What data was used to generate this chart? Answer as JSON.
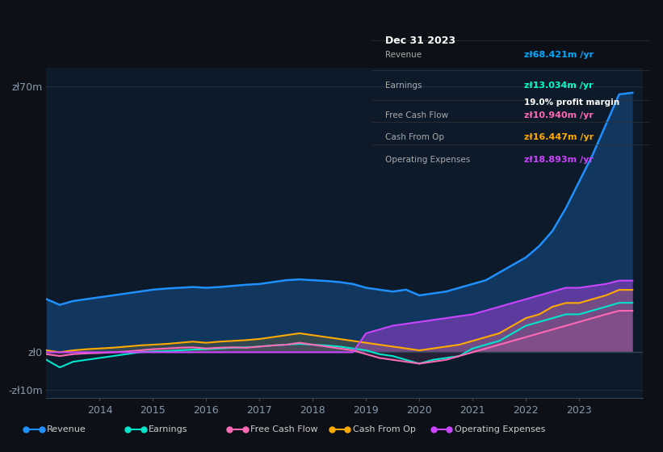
{
  "bg_color": "#0d1117",
  "plot_bg_color": "#0d1a2a",
  "grid_color": "#1e2d3d",
  "title": "Dec 31 2023",
  "tooltip": {
    "Revenue": {
      "value": "zł68.421m",
      "color": "#00aaff"
    },
    "Earnings": {
      "value": "zł13.034m",
      "color": "#00ffcc"
    },
    "profit_margin": "19.0%",
    "Free Cash Flow": {
      "value": "zł10.940m",
      "color": "#ff69b4"
    },
    "Cash From Op": {
      "value": "zł16.447m",
      "color": "#ffaa00"
    },
    "Operating Expenses": {
      "value": "zł18.893m",
      "color": "#cc44ff"
    }
  },
  "years": [
    2013.0,
    2013.25,
    2013.5,
    2013.75,
    2014.0,
    2014.25,
    2014.5,
    2014.75,
    2015.0,
    2015.25,
    2015.5,
    2015.75,
    2016.0,
    2016.25,
    2016.5,
    2016.75,
    2017.0,
    2017.25,
    2017.5,
    2017.75,
    2018.0,
    2018.25,
    2018.5,
    2018.75,
    2019.0,
    2019.25,
    2019.5,
    2019.75,
    2020.0,
    2020.25,
    2020.5,
    2020.75,
    2021.0,
    2021.25,
    2021.5,
    2021.75,
    2022.0,
    2022.25,
    2022.5,
    2022.75,
    2023.0,
    2023.25,
    2023.5,
    2023.75,
    2024.0
  ],
  "revenue": [
    14,
    12.5,
    13.5,
    14,
    14.5,
    15,
    15.5,
    16,
    16.5,
    16.8,
    17,
    17.2,
    17,
    17.2,
    17.5,
    17.8,
    18,
    18.5,
    19,
    19.2,
    19,
    18.8,
    18.5,
    18,
    17,
    16.5,
    16,
    16.5,
    15,
    15.5,
    16,
    17,
    18,
    19,
    21,
    23,
    25,
    28,
    32,
    38,
    45,
    52,
    60,
    68,
    68.421
  ],
  "earnings": [
    -2,
    -4,
    -2.5,
    -2,
    -1.5,
    -1,
    -0.5,
    0,
    0.2,
    0.3,
    0.5,
    0.7,
    0.8,
    1,
    1.2,
    1.3,
    1.5,
    1.8,
    2,
    2.2,
    2,
    1.8,
    1.5,
    1,
    0.5,
    -0.5,
    -1,
    -2,
    -3,
    -2,
    -1.5,
    -1,
    1,
    2,
    3,
    5,
    7,
    8,
    9,
    10,
    10,
    11,
    12,
    13.034,
    13.034
  ],
  "free_cash_flow": [
    -0.5,
    -1,
    -0.5,
    -0.3,
    -0.2,
    0,
    0.2,
    0.5,
    0.8,
    1,
    1.2,
    1.3,
    1,
    1.2,
    1.3,
    1.2,
    1.5,
    1.8,
    2,
    2.5,
    2,
    1.5,
    1,
    0.5,
    -0.5,
    -1.5,
    -2,
    -2.5,
    -3,
    -2.5,
    -2,
    -1,
    0,
    1,
    2,
    3,
    4,
    5,
    6,
    7,
    8,
    9,
    10,
    10.94,
    10.94
  ],
  "cash_from_op": [
    0.5,
    0,
    0.5,
    0.8,
    1,
    1.2,
    1.5,
    1.8,
    2,
    2.2,
    2.5,
    2.8,
    2.5,
    2.8,
    3,
    3.2,
    3.5,
    4,
    4.5,
    5,
    4.5,
    4,
    3.5,
    3,
    2.5,
    2,
    1.5,
    1,
    0.5,
    1,
    1.5,
    2,
    3,
    4,
    5,
    7,
    9,
    10,
    12,
    13,
    13,
    14,
    15,
    16.447,
    16.447
  ],
  "operating_expenses": [
    0,
    0,
    0,
    0,
    0,
    0,
    0,
    0,
    0,
    0,
    0,
    0,
    0,
    0,
    0,
    0,
    0,
    0,
    0,
    0,
    0,
    0,
    0,
    0,
    5,
    6,
    7,
    7.5,
    8,
    8.5,
    9,
    9.5,
    10,
    11,
    12,
    13,
    14,
    15,
    16,
    17,
    17,
    17.5,
    18,
    18.893,
    18.893
  ],
  "colors": {
    "revenue": "#1e90ff",
    "earnings": "#00e5cc",
    "free_cash_flow": "#ff69b4",
    "cash_from_op": "#ffaa00",
    "operating_expenses": "#cc44ff"
  },
  "ylim": [
    -12,
    75
  ],
  "xlim": [
    2013.0,
    2024.2
  ],
  "yticks": [
    -10,
    0,
    70
  ],
  "ytick_labels": [
    "-zł10m",
    "zł0",
    "zł70m"
  ],
  "xticks": [
    2014,
    2015,
    2016,
    2017,
    2018,
    2019,
    2020,
    2021,
    2022,
    2023
  ]
}
